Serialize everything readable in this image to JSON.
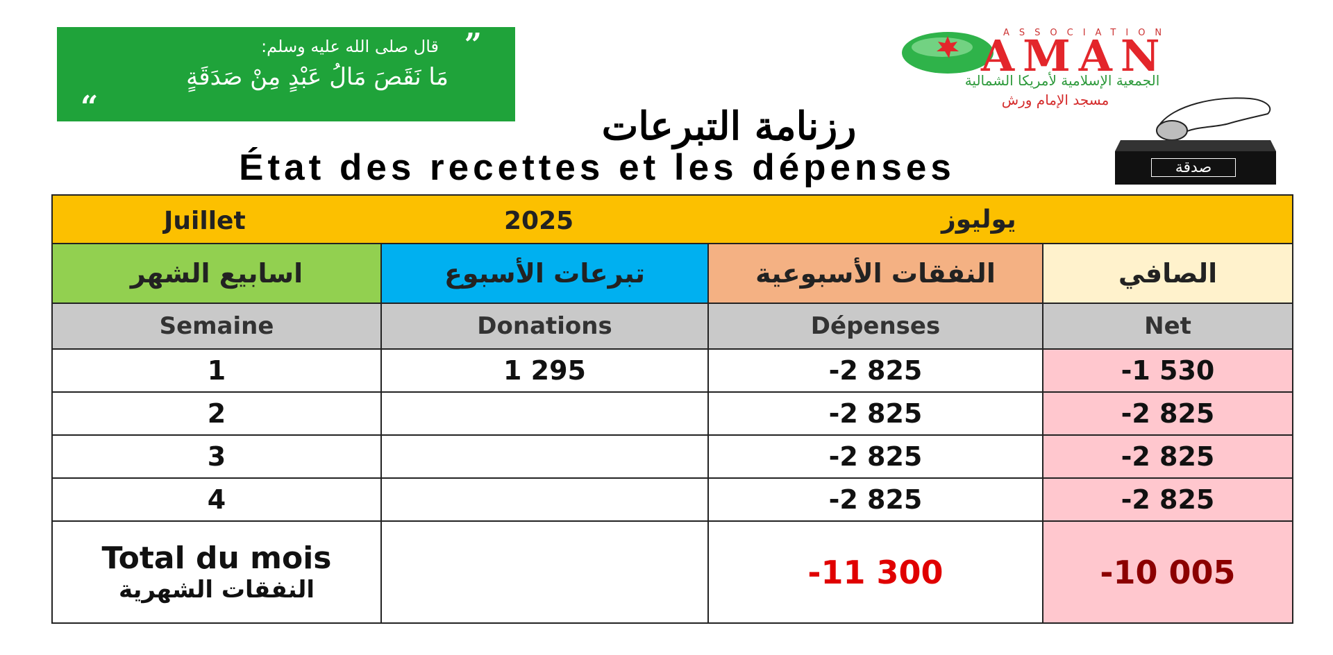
{
  "quote": {
    "intro": "قال صلى الله عليه وسلم:",
    "hadith": "مَا نَقَصَ مَالُ عَبْدٍ مِنْ صَدَقَةٍ",
    "open_mark": "”",
    "close_mark": "“"
  },
  "logo": {
    "assoc": "ASSOCIATION",
    "brand": "AMAN",
    "arabic_name": "الجمعية الإسلامية لأمريكا الشمالية",
    "mosque": "مسجد الإمام ورش"
  },
  "box_label": "صدقة",
  "title_ar": "رزنامة التبرعات",
  "title_fr": "État des recettes et les dépenses",
  "table": {
    "month_fr": "Juillet",
    "year": "2025",
    "month_ar": "يوليوز",
    "headers_ar": [
      "اسابيع الشهر",
      "تبرعات الأسبوع",
      "النفقات الأسبوعية",
      "الصافي"
    ],
    "headers_fr": [
      "Semaine",
      "Donations",
      "Dépenses",
      "Net"
    ],
    "rows": [
      {
        "week": "1",
        "donations": "1 295",
        "expenses": "-2 825",
        "net": "-1 530"
      },
      {
        "week": "2",
        "donations": "",
        "expenses": "-2 825",
        "net": "-2 825"
      },
      {
        "week": "3",
        "donations": "",
        "expenses": "-2 825",
        "net": "-2 825"
      },
      {
        "week": "4",
        "donations": "",
        "expenses": "-2 825",
        "net": "-2 825"
      }
    ],
    "total": {
      "label_fr": "Total du mois",
      "label_ar": "النفقات الشهرية",
      "donations": "",
      "expenses": "-11 300",
      "net": "-10 005"
    }
  },
  "colors": {
    "quote_bg": "#1fa33a",
    "month_bar": "#fcc000",
    "header_green": "#92d050",
    "header_blue": "#00b0f0",
    "header_orange": "#f4b183",
    "header_cream": "#fff2cc",
    "net_pink": "#ffc7ce",
    "donation_green": "#18a84a",
    "expense_red": "#e00000"
  }
}
